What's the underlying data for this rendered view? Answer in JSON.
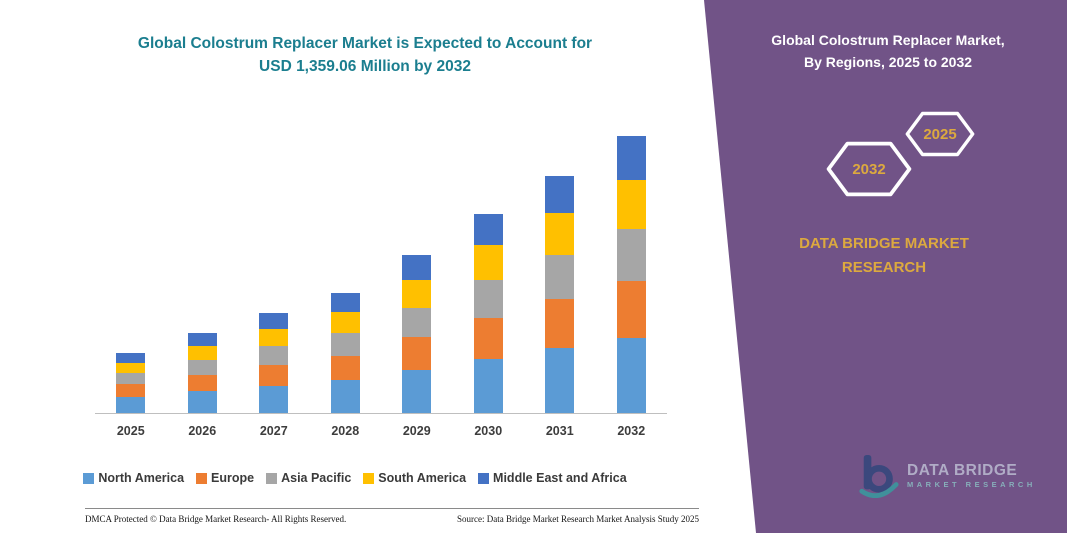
{
  "header": {
    "title_line1": "Global Colostrum Replacer Market is Expected to Account for",
    "title_line2": "USD 1,359.06 Million by 2032"
  },
  "chart_data": {
    "type": "bar",
    "stacked": true,
    "title": "Global Colostrum Replacer Market is Expected to Account for USD 1,359.06 Million by 2032",
    "unit": "USD Million",
    "categories": [
      "2025",
      "2026",
      "2027",
      "2028",
      "2029",
      "2030",
      "2031",
      "2032"
    ],
    "series": [
      {
        "name": "North America",
        "color": "#5B9BD5",
        "values": [
          80,
          107,
          134,
          161,
          212,
          267,
          318,
          370
        ]
      },
      {
        "name": "Europe",
        "color": "#ED7D31",
        "values": [
          61,
          81,
          101,
          121,
          160,
          201,
          240,
          280
        ]
      },
      {
        "name": "Asia Pacific",
        "color": "#A6A6A6",
        "values": [
          55,
          74,
          92,
          111,
          145,
          183,
          218,
          255
        ]
      },
      {
        "name": "South America",
        "color": "#FFC000",
        "values": [
          52,
          69,
          87,
          104,
          137,
          172,
          205,
          240
        ]
      },
      {
        "name": "Middle East and Africa",
        "color": "#4472C4",
        "values": [
          46,
          61,
          77,
          92,
          121,
          153,
          182,
          214.06
        ]
      }
    ],
    "totals_note": "2032 total = 1,359.06 (USD Million), other years estimated from bar heights",
    "ylim": [
      0,
      1400
    ],
    "grid": false,
    "legend_position": "bottom"
  },
  "footer": {
    "dmca": "DMCA Protected © Data Bridge Market Research-  All Rights Reserved.",
    "source": "Source: Data Bridge Market Research  Market Analysis Study 2025"
  },
  "panel": {
    "title_line1": "Global Colostrum Replacer Market,",
    "title_line2": "By Regions, 2025 to 2032",
    "hex_left_year": "2032",
    "hex_right_year": "2025",
    "brand": "DATA BRIDGE MARKET RESEARCH",
    "logo_name": "DATA BRIDGE",
    "logo_sub": "MARKET RESEARCH"
  },
  "colors": {
    "title_teal": "#1B7E8F",
    "panel_purple": "#715387",
    "gold": "#DCA93F",
    "logo_navy": "#27457A",
    "logo_teal": "#2EA8A3"
  }
}
